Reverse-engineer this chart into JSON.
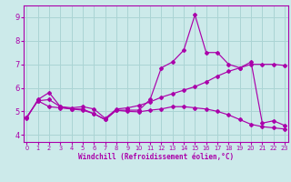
{
  "xlabel": "Windchill (Refroidissement éolien,°C)",
  "ylabel": "",
  "background_color": "#cceaea",
  "grid_color": "#aad4d4",
  "line_color": "#aa00aa",
  "x_ticks": [
    0,
    1,
    2,
    3,
    4,
    5,
    6,
    7,
    8,
    9,
    10,
    11,
    12,
    13,
    14,
    15,
    16,
    17,
    18,
    19,
    20,
    21,
    22,
    23
  ],
  "y_ticks": [
    4,
    5,
    6,
    7,
    8,
    9
  ],
  "ylim": [
    3.7,
    9.5
  ],
  "xlim": [
    -0.3,
    23.3
  ],
  "line1_x": [
    0,
    1,
    2,
    3,
    4,
    5,
    6,
    7,
    8,
    9,
    10,
    11,
    12,
    13,
    14,
    15,
    16,
    17,
    18,
    19,
    20,
    21,
    22,
    23
  ],
  "line1_y": [
    4.7,
    5.5,
    5.8,
    5.2,
    5.1,
    5.1,
    4.9,
    4.65,
    5.05,
    5.05,
    5.05,
    5.5,
    6.85,
    7.1,
    7.6,
    9.1,
    7.5,
    7.5,
    7.0,
    6.85,
    7.1,
    4.5,
    4.6,
    4.4
  ],
  "line2_x": [
    0,
    1,
    2,
    3,
    4,
    5,
    6,
    7,
    8,
    9,
    10,
    11,
    12,
    13,
    14,
    15,
    16,
    17,
    18,
    19,
    20,
    21,
    22,
    23
  ],
  "line2_y": [
    4.75,
    5.45,
    5.5,
    5.2,
    5.15,
    5.2,
    5.1,
    4.7,
    5.1,
    5.15,
    5.25,
    5.4,
    5.6,
    5.75,
    5.9,
    6.05,
    6.25,
    6.5,
    6.7,
    6.85,
    7.0,
    7.0,
    7.0,
    6.95
  ],
  "line3_x": [
    0,
    1,
    2,
    3,
    4,
    5,
    6,
    7,
    8,
    9,
    10,
    11,
    12,
    13,
    14,
    15,
    16,
    17,
    18,
    19,
    20,
    21,
    22,
    23
  ],
  "line3_y": [
    4.75,
    5.45,
    5.2,
    5.15,
    5.1,
    5.05,
    4.9,
    4.65,
    5.05,
    5.0,
    4.98,
    5.05,
    5.1,
    5.2,
    5.2,
    5.15,
    5.1,
    5.0,
    4.85,
    4.65,
    4.45,
    4.35,
    4.3,
    4.25
  ]
}
